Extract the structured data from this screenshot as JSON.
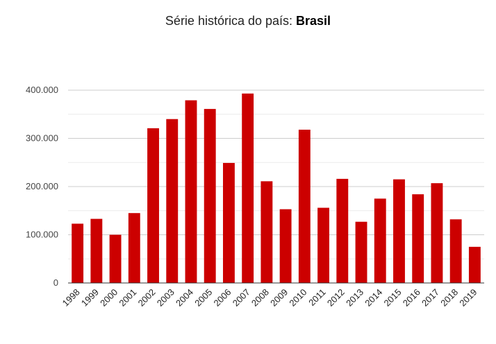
{
  "header": {
    "title_prefix": "Série histórica do país: ",
    "title_country": "Brasil"
  },
  "chart_data": {
    "type": "bar",
    "title": "Série histórica do país: Brasil",
    "xlabel": "",
    "ylabel": "",
    "categories": [
      "1998",
      "1999",
      "2000",
      "2001",
      "2002",
      "2003",
      "2004",
      "2005",
      "2006",
      "2007",
      "2008",
      "2009",
      "2010",
      "2011",
      "2012",
      "2013",
      "2014",
      "2015",
      "2016",
      "2017",
      "2018",
      "2019"
    ],
    "values": [
      123000,
      133000,
      100000,
      145000,
      321000,
      340000,
      379000,
      361000,
      249000,
      393000,
      211000,
      153000,
      318000,
      156000,
      216000,
      127000,
      175000,
      215000,
      184000,
      207000,
      132000,
      75000
    ],
    "ylim": [
      0,
      400000
    ],
    "yticks": [
      0,
      100000,
      200000,
      300000,
      400000
    ],
    "ytick_labels": [
      "0",
      "100.000",
      "200.000",
      "300.000",
      "400.000"
    ],
    "minor_gridlines": true,
    "grid": true,
    "legend": "none",
    "bar_color": "#cc0000"
  }
}
